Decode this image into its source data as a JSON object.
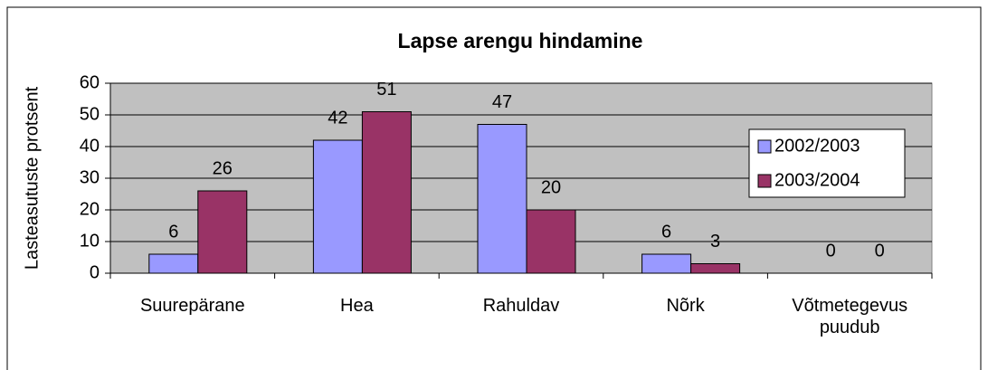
{
  "chart_data": {
    "type": "bar",
    "title": "Lapse arengu hindamine",
    "y_label": "Lasteasutuste protsent",
    "categories": [
      "Suurepärane",
      "Hea",
      "Rahuldav",
      "Nõrk",
      "Võtmetegevus puudub"
    ],
    "series": [
      {
        "name": "2002/2003",
        "color": "#9999ff",
        "values": [
          6,
          42,
          47,
          6,
          0
        ]
      },
      {
        "name": "2003/2004",
        "color": "#993366",
        "values": [
          26,
          51,
          20,
          3,
          0
        ]
      }
    ],
    "ylim": [
      0,
      60
    ],
    "yticks": [
      0,
      10,
      20,
      30,
      40,
      50,
      60
    ],
    "grid": true,
    "legend": "right"
  }
}
